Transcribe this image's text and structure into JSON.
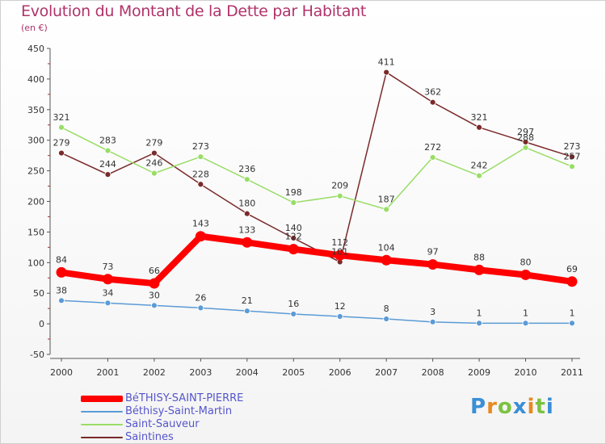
{
  "title": "Evolution du Montant de la Dette par Habitant",
  "unit": "(en €)",
  "logo": {
    "text": "Proxiti",
    "letter_colors": [
      "#3a8fd6",
      "#e8891f",
      "#7cc242",
      "#3a8fd6",
      "#e8891f",
      "#7cc242",
      "#3a8fd6"
    ]
  },
  "chart_data": {
    "type": "line",
    "categories": [
      "2000",
      "2001",
      "2002",
      "2003",
      "2004",
      "2005",
      "2006",
      "2007",
      "2008",
      "2009",
      "2010",
      "2011"
    ],
    "yticks": [
      "450",
      "400",
      "350",
      "300",
      "250",
      "200",
      "150",
      "100",
      "50",
      "0",
      "-50"
    ],
    "ylim": [
      -50,
      450
    ],
    "grid": false,
    "legend_position": "bottom-left",
    "series": [
      {
        "name": "BéTHISY-SAINT-PIERRE",
        "values": [
          84,
          73,
          66,
          143,
          133,
          122,
          112,
          104,
          97,
          88,
          80,
          69
        ],
        "labels": [
          "84",
          "73",
          "66",
          "143",
          "133",
          "122",
          "112",
          "104",
          "97",
          "88",
          "80",
          "69"
        ],
        "color": "#ff0000",
        "thick": true
      },
      {
        "name": "Béthisy-Saint-Martin",
        "values": [
          38,
          34,
          30,
          26,
          21,
          16,
          12,
          8,
          3,
          1,
          1,
          1
        ],
        "labels": [
          "38",
          "34",
          "30",
          "26",
          "21",
          "16",
          "12",
          "8",
          "3",
          "1",
          "1",
          "1"
        ],
        "color": "#5b9bd5",
        "thick": false
      },
      {
        "name": "Saint-Sauveur",
        "values": [
          321,
          283,
          246,
          273,
          236,
          198,
          209,
          187,
          272,
          242,
          288,
          257
        ],
        "labels": [
          "321",
          "283",
          "246",
          "273",
          "236",
          "198",
          "209",
          "187",
          "272",
          "242",
          "288",
          "257"
        ],
        "color": "#99dd66",
        "thick": false
      },
      {
        "name": "Saintines",
        "values": [
          279,
          244,
          279,
          228,
          180,
          140,
          101,
          411,
          362,
          321,
          297,
          273
        ],
        "labels": [
          "279",
          "244",
          "279",
          "228",
          "180",
          "140",
          "101",
          "411",
          "362",
          "321",
          "297",
          "273"
        ],
        "color": "#7a2a2a",
        "thick": false
      }
    ]
  }
}
